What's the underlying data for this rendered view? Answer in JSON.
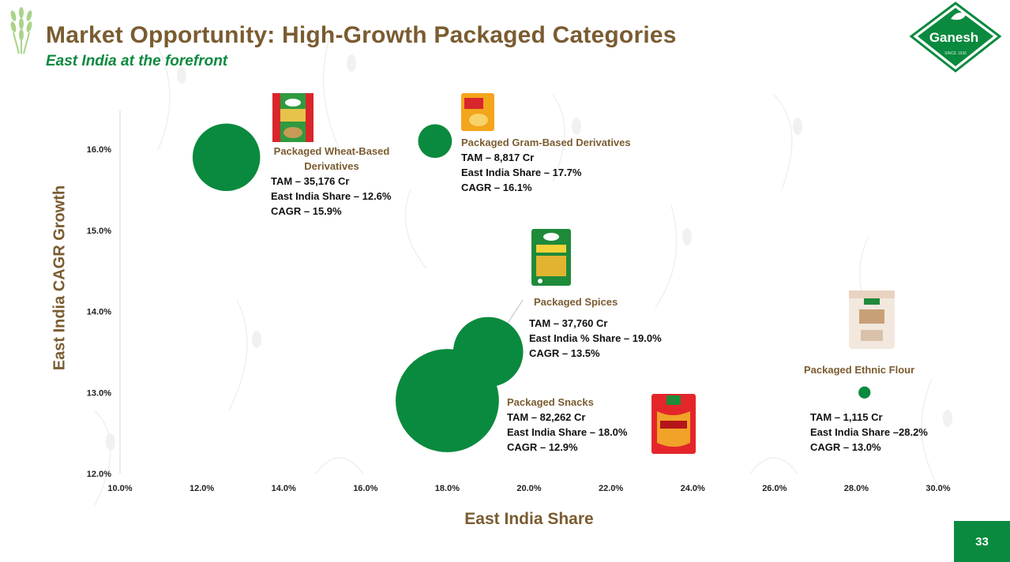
{
  "header": {
    "title": "Market Opportunity: High-Growth Packaged Categories",
    "subtitle": "East India at the forefront"
  },
  "brand": {
    "name": "Ganesh",
    "tagline": "SINCE 1936"
  },
  "page_number": "33",
  "colors": {
    "bubble": "#0a8a3e",
    "title": "#7a5c31",
    "accent": "#0c8a3f"
  },
  "chart_data": {
    "type": "scatter",
    "title": "",
    "xlabel": "East India Share",
    "ylabel": "East India CAGR Growth",
    "xlim": [
      0.1,
      0.3
    ],
    "ylim": [
      0.12,
      0.16
    ],
    "x_ticks": [
      "10.0%",
      "12.0%",
      "14.0%",
      "16.0%",
      "18.0%",
      "20.0%",
      "22.0%",
      "24.0%",
      "26.0%",
      "28.0%",
      "30.0%"
    ],
    "y_ticks": [
      "12.0%",
      "13.0%",
      "14.0%",
      "15.0%",
      "16.0%"
    ],
    "grid": false,
    "size_measure": "TAM (Cr)",
    "points": [
      {
        "name": "Packaged Wheat-Based Derivatives",
        "x": 0.126,
        "y": 0.159,
        "size": 35176,
        "stats": [
          "TAM – 35,176 Cr",
          "East India Share –  12.6%",
          "CAGR – 15.9%"
        ]
      },
      {
        "name": "Packaged Gram-Based Derivatives",
        "x": 0.177,
        "y": 0.161,
        "size": 8817,
        "stats": [
          "TAM – 8,817 Cr",
          "East India Share –  17.7%",
          "CAGR – 16.1%"
        ]
      },
      {
        "name": "Packaged Spices",
        "x": 0.19,
        "y": 0.135,
        "size": 37760,
        "stats": [
          "TAM – 37,760 Cr",
          "East India % Share – 19.0%",
          "CAGR – 13.5%"
        ]
      },
      {
        "name": "Packaged Snacks",
        "x": 0.18,
        "y": 0.129,
        "size": 82262,
        "stats": [
          "TAM – 82,262 Cr",
          "East India Share – 18.0%",
          "CAGR – 12.9%"
        ]
      },
      {
        "name": "Packaged Ethnic Flour",
        "x": 0.282,
        "y": 0.13,
        "size": 1115,
        "stats": [
          "TAM – 1,115 Cr",
          "East India Share –28.2%",
          "CAGR – 13.0%"
        ]
      }
    ]
  }
}
